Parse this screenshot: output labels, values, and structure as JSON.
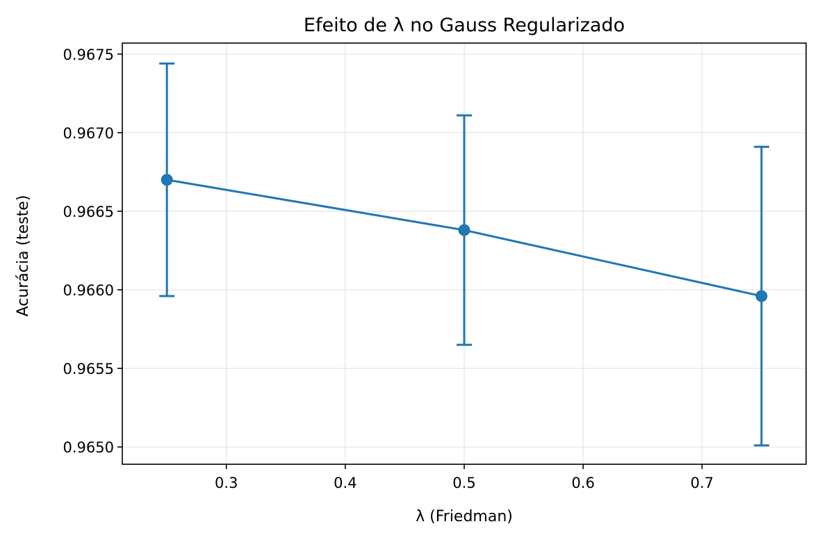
{
  "chart_data": {
    "type": "line",
    "title": "Efeito de λ no Gauss Regularizado",
    "xlabel": "λ (Friedman)",
    "ylabel": "Acurácia (teste)",
    "xlim": [
      0.2125,
      0.7875
    ],
    "ylim": [
      0.96489,
      0.96757
    ],
    "xticks": [
      0.3,
      0.4,
      0.5,
      0.6,
      0.7
    ],
    "xtick_labels": [
      "0.3",
      "0.4",
      "0.5",
      "0.6",
      "0.7"
    ],
    "yticks": [
      0.965,
      0.9655,
      0.966,
      0.9665,
      0.967,
      0.9675
    ],
    "ytick_labels": [
      "0.9650",
      "0.9655",
      "0.9660",
      "0.9665",
      "0.9670",
      "0.9675"
    ],
    "grid": true,
    "series": [
      {
        "color": "#1f77b4",
        "marker": "circle",
        "error_bars": true,
        "points": [
          {
            "x": 0.25,
            "y": 0.9667,
            "err_low": 0.96596,
            "err_high": 0.96744
          },
          {
            "x": 0.5,
            "y": 0.96638,
            "err_low": 0.96565,
            "err_high": 0.96711
          },
          {
            "x": 0.75,
            "y": 0.96596,
            "err_low": 0.96501,
            "err_high": 0.96691
          }
        ]
      }
    ]
  }
}
